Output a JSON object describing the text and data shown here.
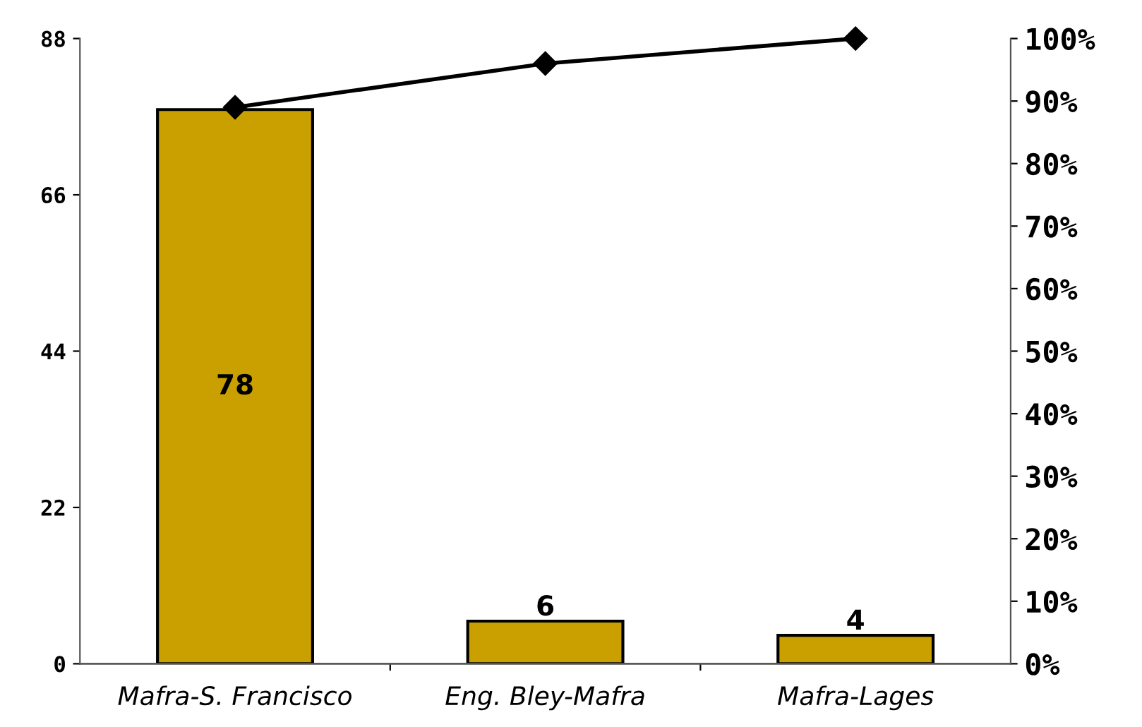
{
  "chart_data": {
    "type": "bar",
    "categories": [
      "Mafra-S. Francisco",
      "Eng. Bley-Mafra",
      "Mafra-Lages"
    ],
    "series": [
      {
        "color": "#c9a000",
        "values": [
          78,
          6,
          4
        ],
        "value_labels": [
          "78",
          "6",
          "4"
        ]
      },
      {
        "type": "line",
        "axis": "y2",
        "color": "#000000",
        "marker": "diamond",
        "values": [
          89,
          96,
          100
        ]
      }
    ],
    "ylim": [
      0,
      88
    ],
    "yticks": [
      0,
      22,
      44,
      66,
      88
    ],
    "y2lim": [
      0,
      100
    ],
    "y2ticks": [
      {
        "value": 0,
        "label": "0%"
      },
      {
        "value": 10,
        "label": "10%"
      },
      {
        "value": 20,
        "label": "20%"
      },
      {
        "value": 30,
        "label": "30%"
      },
      {
        "value": 40,
        "label": "40%"
      },
      {
        "value": 50,
        "label": "50%"
      },
      {
        "value": 60,
        "label": "60%"
      },
      {
        "value": 70,
        "label": "70%"
      },
      {
        "value": 80,
        "label": "80%"
      },
      {
        "value": 90,
        "label": "90%"
      },
      {
        "value": 100,
        "label": "100%"
      }
    ],
    "grid": false,
    "legend": false
  }
}
